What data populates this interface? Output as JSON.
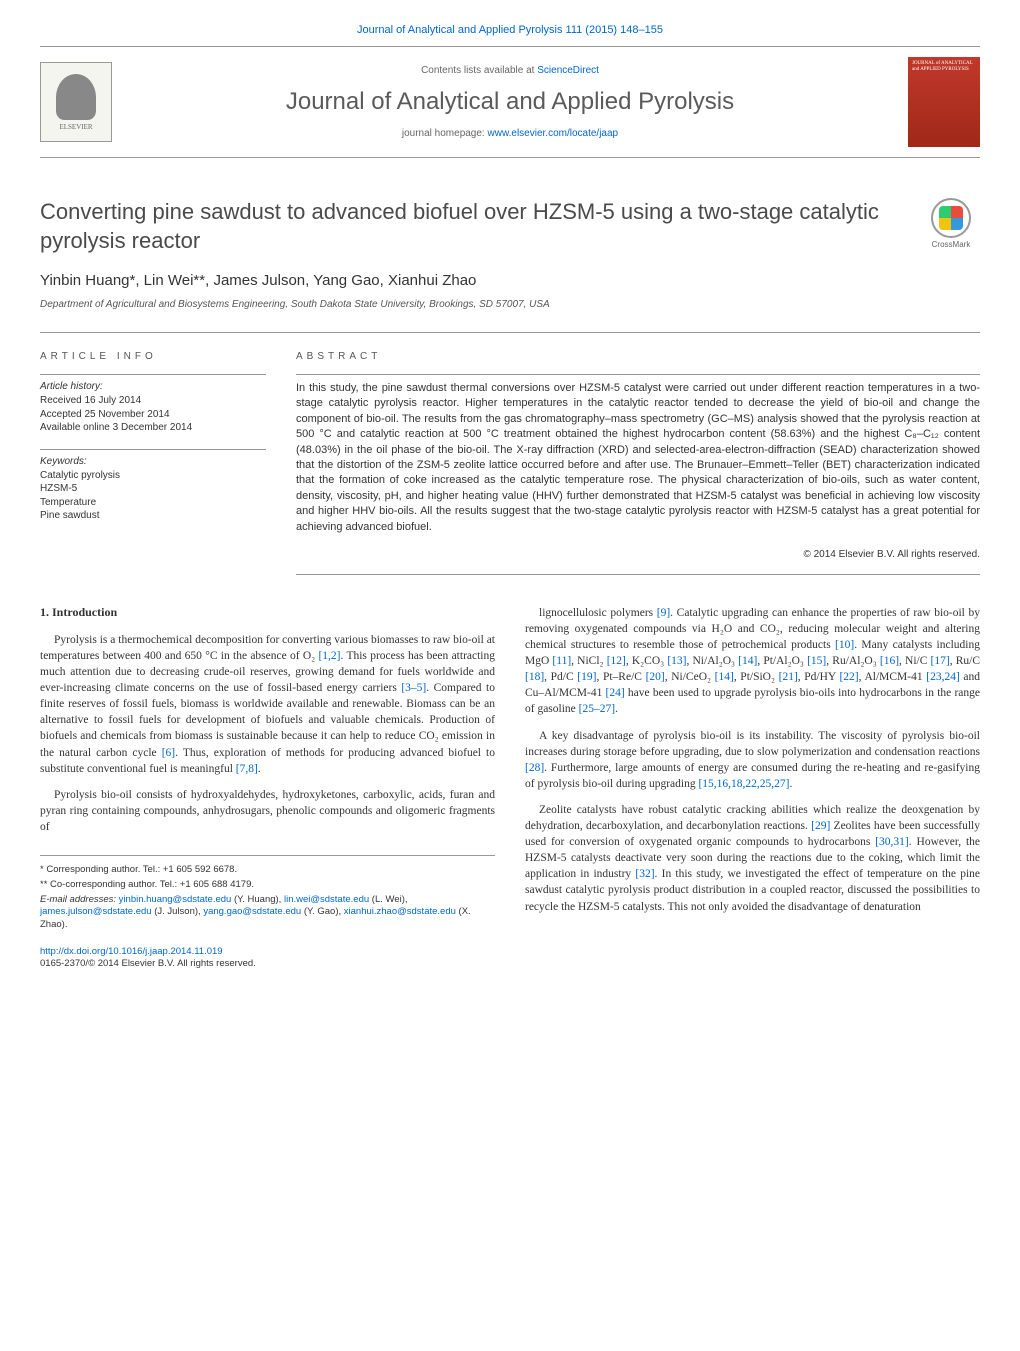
{
  "colors": {
    "link": "#0066cc",
    "text": "#333333",
    "heading_gray": "#4a4a4a",
    "border": "#999999",
    "cover_bg": "#a02818"
  },
  "fonts": {
    "sans": "Arial, sans-serif",
    "serif": "Georgia, 'Times New Roman', serif",
    "title_size_pt": 22,
    "journal_name_size_pt": 24,
    "body_size_pt": 11.5,
    "abstract_size_pt": 11,
    "info_size_pt": 10
  },
  "header": {
    "citation": "Journal of Analytical and Applied Pyrolysis 111 (2015) 148–155",
    "contents_prefix": "Contents lists available at ",
    "contents_link_text": "ScienceDirect",
    "journal_name": "Journal of Analytical and Applied Pyrolysis",
    "homepage_prefix": "journal homepage: ",
    "homepage_link": "www.elsevier.com/locate/jaap",
    "publisher_logo_label": "ELSEVIER",
    "cover_text": "JOURNAL of ANALYTICAL and APPLIED PYROLYSIS",
    "crossmark_label": "CrossMark"
  },
  "paper": {
    "title": "Converting pine sawdust to advanced biofuel over HZSM-5 using a two-stage catalytic pyrolysis reactor",
    "authors": "Yinbin Huang*, Lin Wei**, James Julson, Yang Gao, Xianhui Zhao",
    "affiliation": "Department of Agricultural and Biosystems Engineering, South Dakota State University, Brookings, SD 57007, USA"
  },
  "article_info": {
    "label": "ARTICLE INFO",
    "history_label": "Article history:",
    "history": [
      "Received 16 July 2014",
      "Accepted 25 November 2014",
      "Available online 3 December 2014"
    ],
    "keywords_label": "Keywords:",
    "keywords": [
      "Catalytic pyrolysis",
      "HZSM-5",
      "Temperature",
      "Pine sawdust"
    ]
  },
  "abstract": {
    "label": "ABSTRACT",
    "text": "In this study, the pine sawdust thermal conversions over HZSM-5 catalyst were carried out under different reaction temperatures in a two-stage catalytic pyrolysis reactor. Higher temperatures in the catalytic reactor tended to decrease the yield of bio-oil and change the component of bio-oil. The results from the gas chromatography–mass spectrometry (GC–MS) analysis showed that the pyrolysis reaction at 500 °C and catalytic reaction at 500 °C treatment obtained the highest hydrocarbon content (58.63%) and the highest C₈–C₁₂ content (48.03%) in the oil phase of the bio-oil. The X-ray diffraction (XRD) and selected-area-electron-diffraction (SEAD) characterization showed that the distortion of the ZSM-5 zeolite lattice occurred before and after use. The Brunauer–Emmett–Teller (BET) characterization indicated that the formation of coke increased as the catalytic temperature rose. The physical characterization of bio-oils, such as water content, density, viscosity, pH, and higher heating value (HHV) further demonstrated that HZSM-5 catalyst was beneficial in achieving low viscosity and higher HHV bio-oils. All the results suggest that the two-stage catalytic pyrolysis reactor with HZSM-5 catalyst has a great potential for achieving advanced biofuel.",
    "copyright": "© 2014 Elsevier B.V. All rights reserved."
  },
  "body": {
    "intro_heading": "1. Introduction",
    "left_paragraphs": [
      {
        "segments": [
          {
            "t": "Pyrolysis is a thermochemical decomposition for converting various biomasses to raw bio-oil at temperatures between 400 and 650 °C in the absence of O₂ "
          },
          {
            "t": "[1,2]",
            "ref": true
          },
          {
            "t": ". This process has been attracting much attention due to decreasing crude-oil reserves, growing demand for fuels worldwide and ever-increasing climate concerns on the use of fossil-based energy carriers "
          },
          {
            "t": "[3–5]",
            "ref": true
          },
          {
            "t": ". Compared to finite reserves of fossil fuels, biomass is worldwide available and renewable. Biomass can be an alternative to fossil fuels for development of biofuels and valuable chemicals. Production of biofuels and chemicals from biomass is sustainable because it can help to reduce CO₂ emission in the natural carbon cycle "
          },
          {
            "t": "[6]",
            "ref": true
          },
          {
            "t": ". Thus, exploration of methods for producing advanced biofuel to substitute conventional fuel is meaningful "
          },
          {
            "t": "[7,8]",
            "ref": true
          },
          {
            "t": "."
          }
        ]
      },
      {
        "segments": [
          {
            "t": "Pyrolysis bio-oil consists of hydroxyaldehydes, hydroxyketones, carboxylic, acids, furan and pyran ring containing compounds, anhydrosugars, phenolic compounds and oligomeric fragments of"
          }
        ]
      }
    ],
    "right_paragraphs": [
      {
        "segments": [
          {
            "t": "lignocellulosic polymers "
          },
          {
            "t": "[9]",
            "ref": true
          },
          {
            "t": ". Catalytic upgrading can enhance the properties of raw bio-oil by removing oxygenated compounds via H₂O and CO₂, reducing molecular weight and altering chemical structures to resemble those of petrochemical products "
          },
          {
            "t": "[10]",
            "ref": true
          },
          {
            "t": ". Many catalysts including MgO "
          },
          {
            "t": "[11]",
            "ref": true
          },
          {
            "t": ", NiCl₂ "
          },
          {
            "t": "[12]",
            "ref": true
          },
          {
            "t": ", K₂CO₃ "
          },
          {
            "t": "[13]",
            "ref": true
          },
          {
            "t": ", Ni/Al₂O₃ "
          },
          {
            "t": "[14]",
            "ref": true
          },
          {
            "t": ", Pt/Al₂O₃ "
          },
          {
            "t": "[15]",
            "ref": true
          },
          {
            "t": ", Ru/Al₂O₃ "
          },
          {
            "t": "[16]",
            "ref": true
          },
          {
            "t": ", Ni/C "
          },
          {
            "t": "[17]",
            "ref": true
          },
          {
            "t": ", Ru/C "
          },
          {
            "t": "[18]",
            "ref": true
          },
          {
            "t": ", Pd/C "
          },
          {
            "t": "[19]",
            "ref": true
          },
          {
            "t": ", Pt–Re/C "
          },
          {
            "t": "[20]",
            "ref": true
          },
          {
            "t": ", Ni/CeO₂ "
          },
          {
            "t": "[14]",
            "ref": true
          },
          {
            "t": ", Pt/SiO₂ "
          },
          {
            "t": "[21]",
            "ref": true
          },
          {
            "t": ", Pd/HY "
          },
          {
            "t": "[22]",
            "ref": true
          },
          {
            "t": ", Al/MCM-41 "
          },
          {
            "t": "[23,24]",
            "ref": true
          },
          {
            "t": " and Cu–Al/MCM-41 "
          },
          {
            "t": "[24]",
            "ref": true
          },
          {
            "t": " have been used to upgrade pyrolysis bio-oils into hydrocarbons in the range of gasoline "
          },
          {
            "t": "[25–27]",
            "ref": true
          },
          {
            "t": "."
          }
        ]
      },
      {
        "segments": [
          {
            "t": "A key disadvantage of pyrolysis bio-oil is its instability. The viscosity of pyrolysis bio-oil increases during storage before upgrading, due to slow polymerization and condensation reactions "
          },
          {
            "t": "[28]",
            "ref": true
          },
          {
            "t": ". Furthermore, large amounts of energy are consumed during the re-heating and re-gasifying of pyrolysis bio-oil during upgrading "
          },
          {
            "t": "[15,16,18,22,25,27]",
            "ref": true
          },
          {
            "t": "."
          }
        ]
      },
      {
        "segments": [
          {
            "t": "Zeolite catalysts have robust catalytic cracking abilities which realize the deoxgenation by dehydration, decarboxylation, and decarbonylation reactions. "
          },
          {
            "t": "[29]",
            "ref": true
          },
          {
            "t": " Zeolites have been successfully used for conversion of oxygenated organic compounds to hydrocarbons "
          },
          {
            "t": "[30,31]",
            "ref": true
          },
          {
            "t": ". However, the HZSM-5 catalysts deactivate very soon during the reactions due to the coking, which limit the application in industry "
          },
          {
            "t": "[32]",
            "ref": true
          },
          {
            "t": ". In this study, we investigated the effect of temperature on the pine sawdust catalytic pyrolysis product distribution in a coupled reactor, discussed the possibilities to recycle the HZSM-5 catalysts. This not only avoided the disadvantage of denaturation"
          }
        ]
      }
    ]
  },
  "footnotes": {
    "corr1": "* Corresponding author. Tel.: +1 605 592 6678.",
    "corr2": "** Co-corresponding author. Tel.: +1 605 688 4179.",
    "email_label": "E-mail addresses: ",
    "emails": [
      {
        "addr": "yinbin.huang@sdstate.edu",
        "name": "(Y. Huang), "
      },
      {
        "addr": "lin.wei@sdstate.edu",
        "name": "(L. Wei), "
      },
      {
        "addr": "james.julson@sdstate.edu",
        "name": "(J. Julson), "
      },
      {
        "addr": "yang.gao@sdstate.edu",
        "name": "(Y. Gao), "
      },
      {
        "addr": "xianhui.zhao@sdstate.edu",
        "name": "(X. Zhao)."
      }
    ]
  },
  "doi": {
    "link": "http://dx.doi.org/10.1016/j.jaap.2014.11.019",
    "issn_line": "0165-2370/© 2014 Elsevier B.V. All rights reserved."
  }
}
